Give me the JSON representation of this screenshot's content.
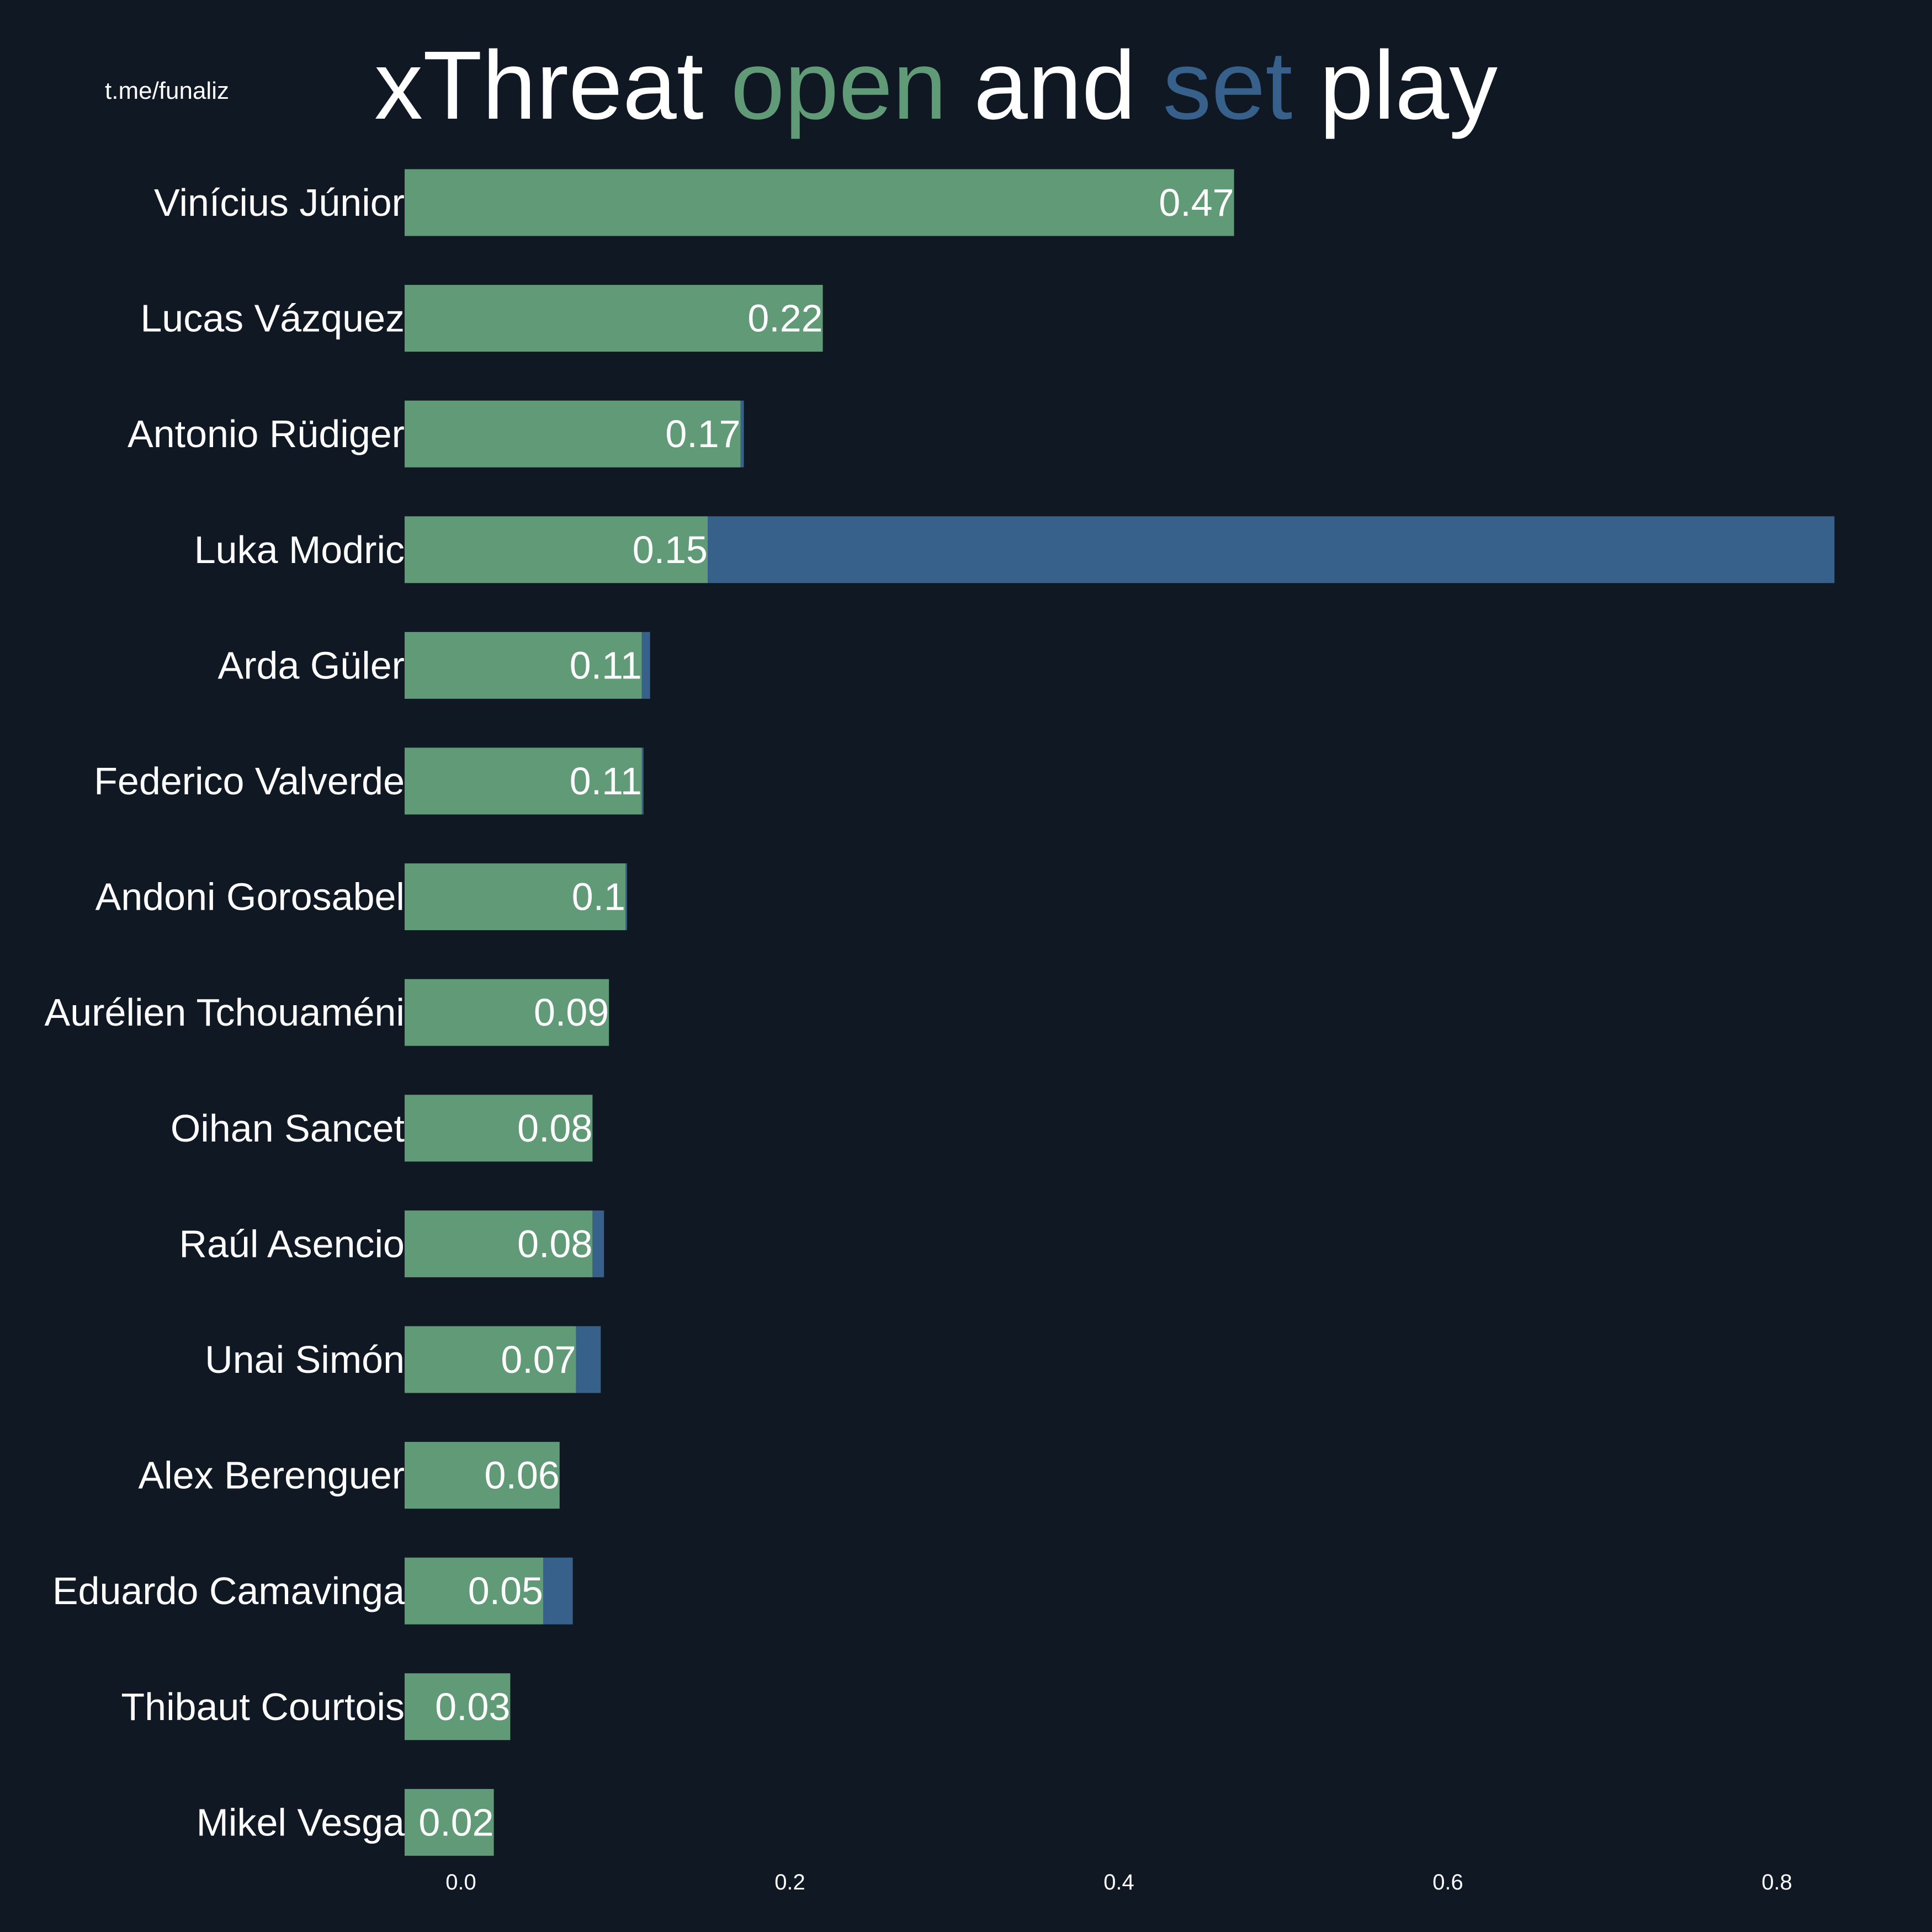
{
  "watermark": "t.me/funaliz",
  "title": {
    "part1": "xThreat ",
    "open": "open",
    "part2": " and ",
    "set": "set",
    "part3": " play"
  },
  "colors": {
    "background": "#0f1823",
    "open": "#619a77",
    "set": "#37618b",
    "text": "#ffffff"
  },
  "chart_data": {
    "type": "bar",
    "orientation": "horizontal",
    "stacked": true,
    "title": "xThreat open and set play",
    "xlabel": "",
    "ylabel": "",
    "xlim": [
      -0.07,
      0.85
    ],
    "xticks": [
      0.0,
      0.2,
      0.4,
      0.6,
      0.8
    ],
    "grid": false,
    "categories": [
      "Vinícius Júnior",
      "Lucas Vázquez",
      "Antonio Rüdiger",
      "Luka Modric",
      "Arda Güler",
      "Federico Valverde",
      "Andoni Gorosabel",
      "Aurélien Tchouaméni",
      "Oihan Sancet",
      "Raúl Asencio",
      "Unai Simón",
      "Alex Berenguer",
      "Eduardo Camavinga",
      "Thibaut Courtois",
      "Mikel Vesga"
    ],
    "series": [
      {
        "name": "open",
        "values": [
          0.47,
          0.22,
          0.17,
          0.15,
          0.11,
          0.11,
          0.1,
          0.09,
          0.08,
          0.08,
          0.07,
          0.06,
          0.05,
          0.03,
          0.02
        ]
      },
      {
        "name": "set",
        "values": [
          0.0,
          0.0,
          0.002,
          0.685,
          0.005,
          0.001,
          0.001,
          0.0,
          0.0,
          0.007,
          0.015,
          0.0,
          0.018,
          0.0,
          0.0
        ]
      }
    ],
    "data_labels": [
      "0.47",
      "0.22",
      "0.17",
      "0.15",
      "0.11",
      "0.11",
      "0.1",
      "0.09",
      "0.08",
      "0.08",
      "0.07",
      "0.06",
      "0.05",
      "0.03",
      "0.02"
    ]
  }
}
